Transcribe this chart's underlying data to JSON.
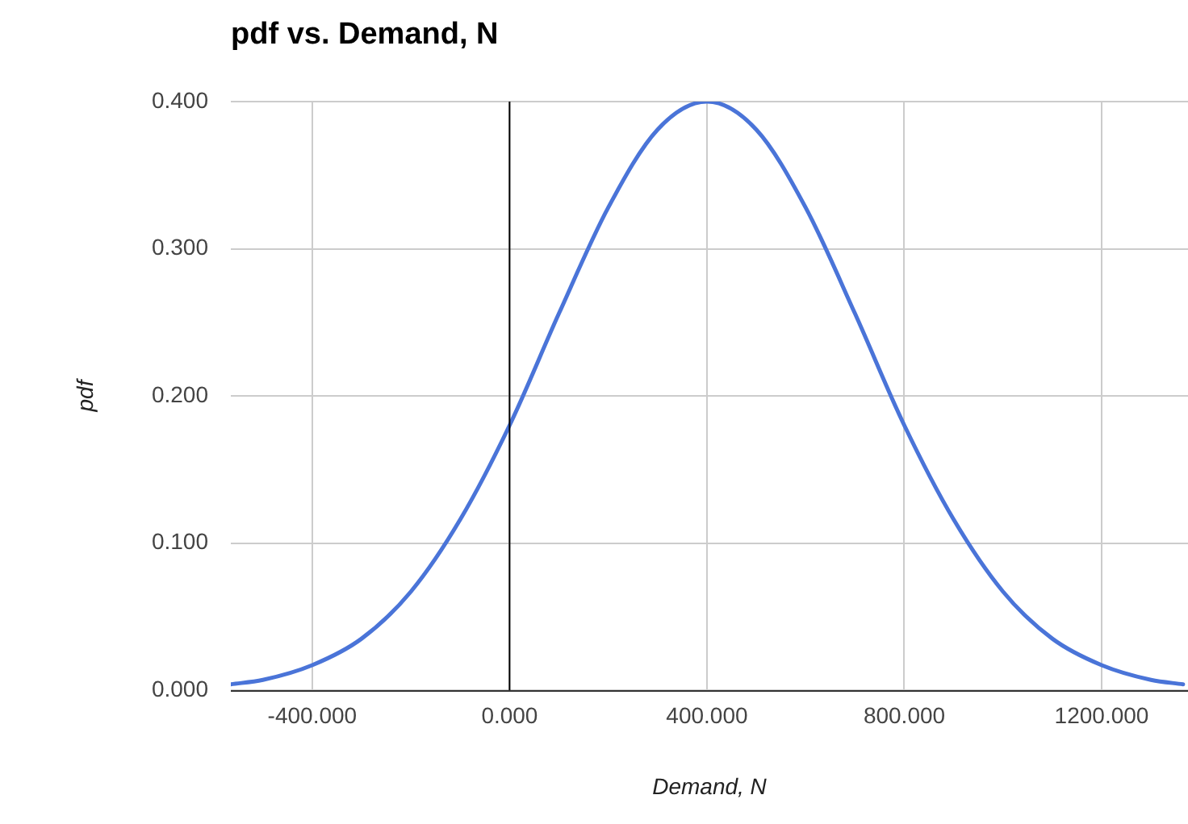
{
  "chart_data": {
    "type": "line",
    "title": "pdf vs. Demand, N",
    "xlabel": "Demand, N",
    "ylabel": "pdf",
    "x": [
      -565,
      -500,
      -400,
      -300,
      -200,
      -100,
      0,
      100,
      200,
      300,
      400,
      500,
      600,
      700,
      800,
      900,
      1000,
      1100,
      1200,
      1300,
      1365
    ],
    "series": [
      {
        "color": "#4a74d8",
        "values": [
          0.004,
          0.007,
          0.017,
          0.035,
          0.067,
          0.116,
          0.18,
          0.256,
          0.328,
          0.381,
          0.4,
          0.381,
          0.328,
          0.256,
          0.18,
          0.116,
          0.067,
          0.035,
          0.017,
          0.007,
          0.004
        ]
      }
    ],
    "xlim": [
      -565,
      1375
    ],
    "xticks": [
      {
        "value": -400,
        "label": "-400.000"
      },
      {
        "value": 0,
        "label": "0.000"
      },
      {
        "value": 400,
        "label": "400.000"
      },
      {
        "value": 800,
        "label": "800.000"
      },
      {
        "value": 1200,
        "label": "1200.000"
      }
    ],
    "ylim": [
      0,
      0.4
    ],
    "yticks": [
      {
        "value": 0,
        "label": "0.000"
      },
      {
        "value": 0.1,
        "label": "0.100"
      },
      {
        "value": 0.2,
        "label": "0.200"
      },
      {
        "value": 0.3,
        "label": "0.300"
      },
      {
        "value": 0.4,
        "label": "0.400"
      }
    ],
    "ref_lines": [
      {
        "axis": "x",
        "value": 0,
        "color": "#000000"
      }
    ],
    "grid": true,
    "legend": false,
    "marker": "none",
    "line_style": "solid"
  }
}
